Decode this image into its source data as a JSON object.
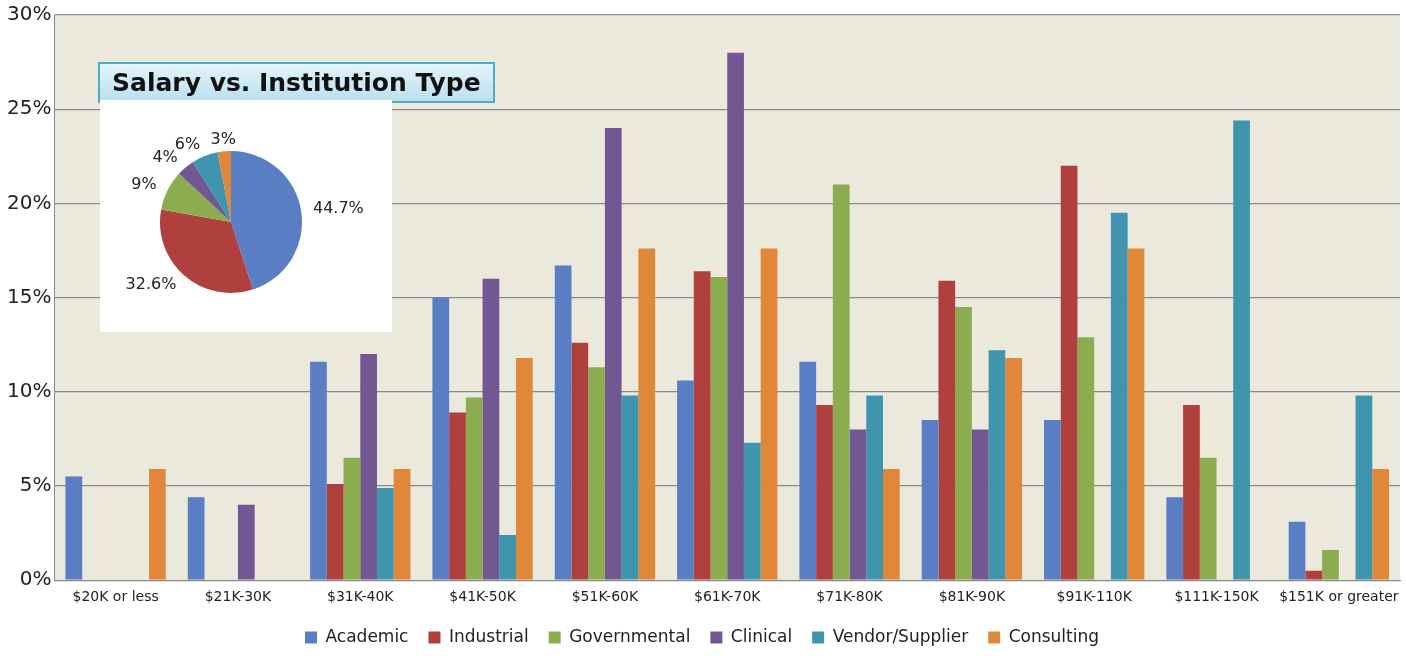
{
  "chart_data": [
    {
      "type": "bar",
      "title": "Salary vs. Institution Type",
      "categories": [
        "$20K or less",
        "$21K-30K",
        "$31K-40K",
        "$41K-50K",
        "$51K-60K",
        "$61K-70K",
        "$71K-80K",
        "$81K-90K",
        "$91K-110K",
        "$111K-150K",
        "$151K or greater"
      ],
      "series": [
        {
          "name": "Academic",
          "color": "#5a7ec4",
          "values": [
            5.5,
            4.4,
            11.6,
            15.0,
            16.7,
            10.6,
            11.6,
            8.5,
            8.5,
            4.4,
            3.1
          ]
        },
        {
          "name": "Industrial",
          "color": "#b0403d",
          "values": [
            null,
            null,
            5.1,
            8.9,
            12.6,
            16.4,
            9.3,
            15.9,
            22.0,
            9.3,
            0.5
          ]
        },
        {
          "name": "Governmental",
          "color": "#8cac50",
          "values": [
            null,
            null,
            6.5,
            9.7,
            11.3,
            16.1,
            21.0,
            14.5,
            12.9,
            6.5,
            1.6
          ]
        },
        {
          "name": "Clinical",
          "color": "#725893",
          "values": [
            null,
            4.0,
            12.0,
            16.0,
            24.0,
            28.0,
            8.0,
            8.0,
            null,
            null,
            null
          ]
        },
        {
          "name": "Vendor/Supplier",
          "color": "#3f95ad",
          "values": [
            null,
            null,
            4.9,
            2.4,
            9.8,
            7.3,
            9.8,
            12.2,
            19.5,
            24.4,
            9.8
          ]
        },
        {
          "name": "Consulting",
          "color": "#e0873a",
          "values": [
            5.9,
            null,
            5.9,
            11.8,
            17.6,
            17.6,
            5.9,
            11.8,
            17.6,
            null,
            5.9
          ]
        }
      ],
      "ylim": [
        0,
        30
      ],
      "yticks": [
        {
          "value": 0,
          "label": "0%"
        },
        {
          "value": 5,
          "label": "5%"
        },
        {
          "value": 10,
          "label": "10%"
        },
        {
          "value": 15,
          "label": "15%"
        },
        {
          "value": 20,
          "label": "20%"
        },
        {
          "value": 25,
          "label": "25%"
        },
        {
          "value": 30,
          "label": "30%"
        }
      ],
      "grid": "y",
      "legend": "bottom"
    },
    {
      "type": "pie",
      "categories": [
        null,
        null,
        null,
        null,
        null,
        null
      ],
      "values": [
        44.7,
        32.6,
        9,
        4,
        6,
        3
      ],
      "colors": [
        "#5a7ec4",
        "#b0403d",
        "#8cac50",
        "#725893",
        "#3f95ad",
        "#e0873a"
      ],
      "value_labels": [
        "44.7%",
        "32.6%",
        "9%",
        "4%",
        "6%",
        "3%"
      ],
      "legend": false
    }
  ]
}
